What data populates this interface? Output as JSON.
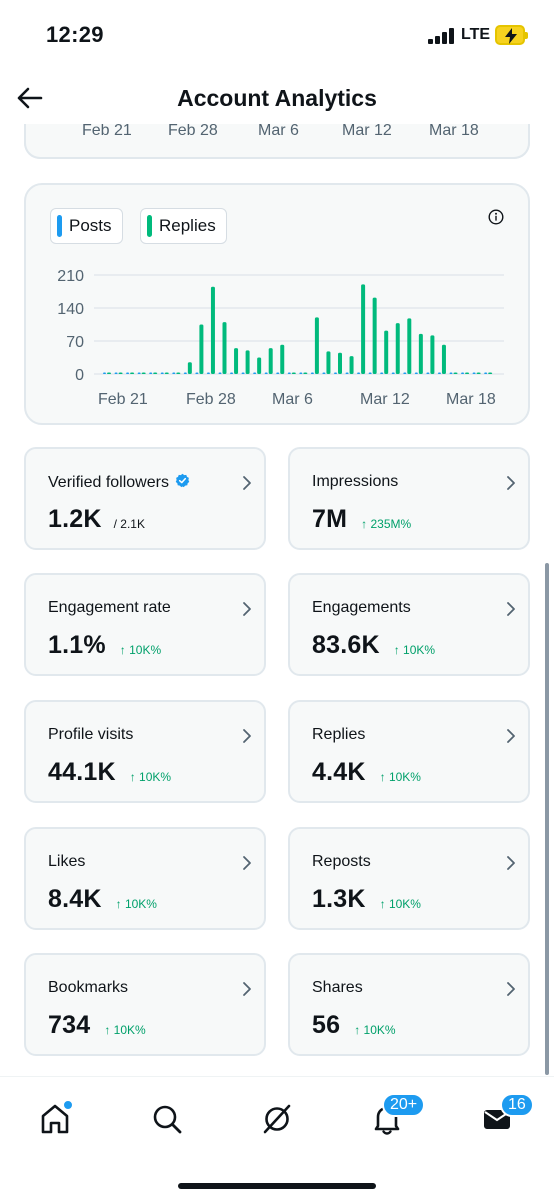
{
  "status_bar": {
    "time": "12:29",
    "network": "LTE"
  },
  "header": {
    "title": "Account Analytics"
  },
  "top_card": {
    "ticks": [
      "Feb 21",
      "Feb 28",
      "Mar 6",
      "Mar 12",
      "Mar 18"
    ]
  },
  "chart": {
    "legend": [
      {
        "label": "Posts",
        "color": "#1d9bf0"
      },
      {
        "label": "Replies",
        "color": "#00ba7c"
      }
    ]
  },
  "chart_data": {
    "type": "bar",
    "categories": [
      "Feb 21",
      "",
      "",
      "",
      "",
      "",
      "",
      "",
      "",
      "Feb 28",
      "",
      "",
      "",
      "",
      "",
      "",
      "Mar 6",
      "",
      "",
      "",
      "",
      "",
      "Mar 12",
      "",
      "",
      "",
      "",
      "",
      "Mar 18",
      "",
      "",
      "",
      "",
      ""
    ],
    "series": [
      {
        "name": "Posts",
        "values": [
          0,
          0,
          0,
          0,
          0,
          0,
          0,
          0,
          0,
          0,
          0,
          0,
          0,
          0,
          0,
          0,
          0,
          0,
          0,
          0,
          0,
          0,
          0,
          0,
          0,
          0,
          0,
          0,
          0,
          0,
          0,
          0,
          0,
          0
        ]
      },
      {
        "name": "Replies",
        "values": [
          0,
          0,
          0,
          0,
          0,
          2,
          3,
          25,
          105,
          185,
          110,
          55,
          50,
          35,
          55,
          62,
          0,
          0,
          120,
          48,
          45,
          38,
          190,
          162,
          92,
          108,
          118,
          85,
          82,
          62,
          0,
          0,
          0,
          0
        ]
      }
    ],
    "x_tick_labels": [
      "Feb 21",
      "Feb 28",
      "Mar 6",
      "Mar 12",
      "Mar 18"
    ],
    "y_ticks": [
      0,
      70,
      140,
      210
    ],
    "ylim": [
      0,
      210
    ],
    "grid": true,
    "legend_position": "top-left"
  },
  "metrics": [
    {
      "label": "Verified followers",
      "value": "1.2K",
      "sub": "/ 2.1K",
      "sub_style": "gray",
      "verified": true
    },
    {
      "label": "Impressions",
      "value": "7M",
      "sub": "↑ 235M%",
      "sub_style": "green"
    },
    {
      "label": "Engagement rate",
      "value": "1.1%",
      "sub": "↑ 10K%",
      "sub_style": "green"
    },
    {
      "label": "Engagements",
      "value": "83.6K",
      "sub": "↑ 10K%",
      "sub_style": "green"
    },
    {
      "label": "Profile visits",
      "value": "44.1K",
      "sub": "↑ 10K%",
      "sub_style": "green"
    },
    {
      "label": "Replies",
      "value": "4.4K",
      "sub": "↑ 10K%",
      "sub_style": "green"
    },
    {
      "label": "Likes",
      "value": "8.4K",
      "sub": "↑ 10K%",
      "sub_style": "green"
    },
    {
      "label": "Reposts",
      "value": "1.3K",
      "sub": "↑ 10K%",
      "sub_style": "green"
    },
    {
      "label": "Bookmarks",
      "value": "734",
      "sub": "↑ 10K%",
      "sub_style": "green"
    },
    {
      "label": "Shares",
      "value": "56",
      "sub": "↑ 10K%",
      "sub_style": "green"
    }
  ],
  "bottom_nav": {
    "items": [
      "home-icon",
      "search-icon",
      "grok-icon",
      "bell-icon",
      "mail-icon"
    ],
    "notifications_badge": "20+",
    "messages_badge": "16"
  }
}
